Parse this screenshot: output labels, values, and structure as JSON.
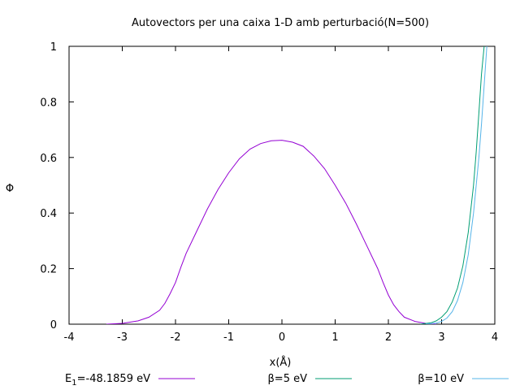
{
  "chart_data": {
    "type": "line",
    "title": "Autovectors per una caixa 1-D amb perturbació(N=500)",
    "xlabel": "x(Å)",
    "ylabel": "Φ",
    "xlim": [
      -4,
      4
    ],
    "ylim": [
      0,
      1
    ],
    "xticks": [
      -4,
      -3,
      -2,
      -1,
      0,
      1,
      2,
      3,
      4
    ],
    "yticks": [
      0,
      0.2,
      0.4,
      0.6,
      0.8,
      1
    ],
    "xtick_labels": [
      "-4",
      "-3",
      "-2",
      "-1",
      "0",
      "1",
      "2",
      "3",
      "4"
    ],
    "ytick_labels": [
      "0",
      "0.2",
      "0.4",
      "0.6",
      "0.8",
      "1"
    ],
    "grid": false,
    "legend_position": "bottom",
    "legend": [
      {
        "base": "E",
        "sub": "1",
        "text": "=-48.1859 eV",
        "color": "#9400d3"
      },
      {
        "text": "β=5 eV",
        "color": "#009e73"
      },
      {
        "text": "β=10 eV",
        "color": "#56b4e9"
      }
    ],
    "series": [
      {
        "color": "#9400d3",
        "x": [
          -3.3,
          -3.0,
          -2.7,
          -2.5,
          -2.3,
          -2.2,
          -2.1,
          -2.0,
          -1.9,
          -1.8,
          -1.6,
          -1.4,
          -1.2,
          -1.0,
          -0.8,
          -0.6,
          -0.4,
          -0.2,
          0.0,
          0.2,
          0.4,
          0.6,
          0.8,
          1.0,
          1.2,
          1.4,
          1.6,
          1.8,
          1.9,
          2.0,
          2.1,
          2.2,
          2.3,
          2.5,
          2.7,
          2.9
        ],
        "y": [
          0.0,
          0.003,
          0.012,
          0.025,
          0.05,
          0.075,
          0.11,
          0.15,
          0.205,
          0.255,
          0.335,
          0.415,
          0.485,
          0.545,
          0.595,
          0.63,
          0.65,
          0.66,
          0.662,
          0.655,
          0.64,
          0.605,
          0.56,
          0.5,
          0.435,
          0.36,
          0.28,
          0.2,
          0.15,
          0.105,
          0.07,
          0.045,
          0.025,
          0.01,
          0.003,
          0.0
        ]
      },
      {
        "color": "#009e73",
        "x": [
          2.6,
          2.8,
          2.9,
          3.0,
          3.1,
          3.2,
          3.3,
          3.4,
          3.5,
          3.6,
          3.65,
          3.7,
          3.75,
          3.8
        ],
        "y": [
          0.0,
          0.005,
          0.012,
          0.025,
          0.045,
          0.08,
          0.13,
          0.21,
          0.33,
          0.5,
          0.62,
          0.76,
          0.9,
          1.0
        ]
      },
      {
        "color": "#56b4e9",
        "x": [
          2.7,
          2.9,
          3.0,
          3.1,
          3.2,
          3.3,
          3.4,
          3.5,
          3.6,
          3.7,
          3.75,
          3.8,
          3.85
        ],
        "y": [
          0.0,
          0.004,
          0.01,
          0.022,
          0.045,
          0.085,
          0.15,
          0.25,
          0.4,
          0.6,
          0.72,
          0.86,
          1.0
        ]
      }
    ]
  }
}
